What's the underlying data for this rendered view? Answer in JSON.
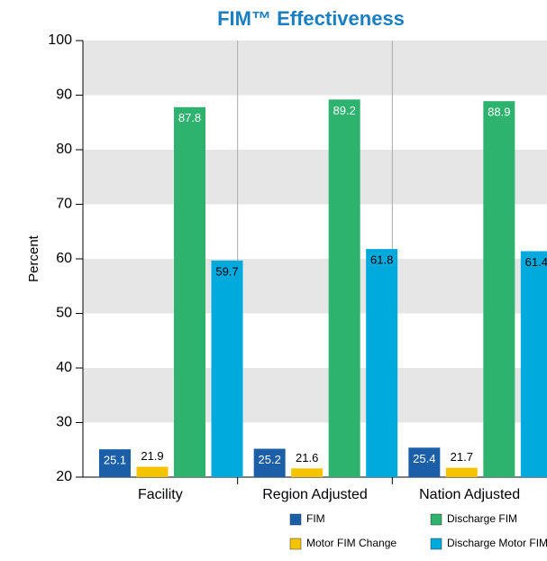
{
  "chart_data": {
    "type": "bar",
    "title": "FIM™ Effectiveness",
    "ylabel": "Percent",
    "categories": [
      "Facility",
      "Region Adjusted",
      "Nation Adjusted"
    ],
    "series": [
      {
        "name": "FIM",
        "color": "#1a5fa8",
        "values": [
          25.1,
          25.2,
          25.4
        ]
      },
      {
        "name": "Motor FIM Change",
        "color": "#f5c400",
        "values": [
          21.9,
          21.6,
          21.7
        ]
      },
      {
        "name": "Discharge FIM",
        "color": "#2db36e",
        "values": [
          87.8,
          89.2,
          88.9
        ]
      },
      {
        "name": "Discharge Motor FIM",
        "color": "#00aadd",
        "values": [
          59.7,
          61.8,
          61.4
        ]
      }
    ],
    "ylim": [
      20,
      100
    ],
    "yticks": [
      20,
      30,
      40,
      50,
      60,
      70,
      80,
      90,
      100
    ],
    "grid": true
  }
}
